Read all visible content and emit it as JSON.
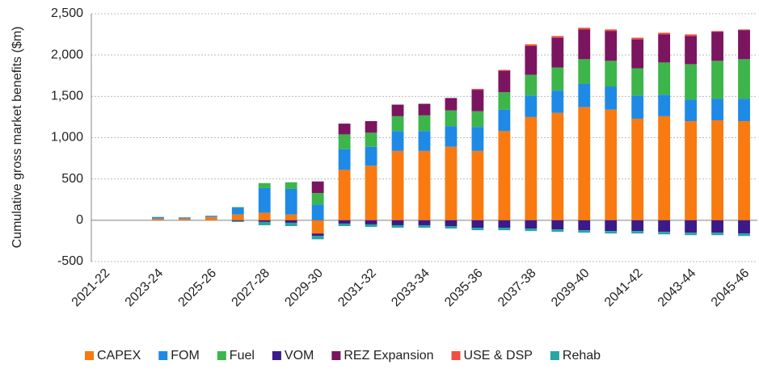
{
  "chart_data": {
    "type": "stacked_bar",
    "y_label": "Cumulative gross market benefits ($m)",
    "categories": [
      "2021-22",
      null,
      "2023-24",
      null,
      "2025-26",
      null,
      "2027-28",
      null,
      "2029-30",
      null,
      "2031-32",
      null,
      "2033-34",
      null,
      "2035-36",
      null,
      "2037-38",
      null,
      "2039-40",
      null,
      "2041-42",
      null,
      "2043-44",
      null,
      "2045-46"
    ],
    "series": [
      {
        "name": "CAPEX",
        "color": "#f97a10",
        "values": [
          0,
          0,
          20,
          20,
          40,
          70,
          90,
          70,
          -160,
          610,
          660,
          840,
          840,
          890,
          840,
          1080,
          1250,
          1300,
          1370,
          1340,
          1230,
          1260,
          1200,
          1210,
          1200
        ]
      },
      {
        "name": "FOM",
        "color": "#1e8ae6",
        "values": [
          0,
          0,
          20,
          15,
          15,
          80,
          300,
          310,
          190,
          250,
          230,
          240,
          240,
          250,
          290,
          260,
          260,
          270,
          280,
          280,
          280,
          260,
          260,
          260,
          270
        ]
      },
      {
        "name": "Fuel",
        "color": "#3cb54a",
        "values": [
          0,
          0,
          0,
          0,
          0,
          10,
          60,
          80,
          140,
          180,
          170,
          180,
          190,
          190,
          190,
          210,
          250,
          280,
          300,
          310,
          330,
          390,
          430,
          460,
          480
        ]
      },
      {
        "name": "VOM",
        "color": "#3b1a8a",
        "values": [
          0,
          0,
          0,
          0,
          0,
          -10,
          -20,
          -30,
          -30,
          -40,
          -50,
          -60,
          -60,
          -70,
          -90,
          -90,
          -100,
          -110,
          -120,
          -130,
          -130,
          -140,
          -150,
          -150,
          -160
        ]
      },
      {
        "name": "REZ Expansion",
        "color": "#7b1560",
        "values": [
          0,
          0,
          0,
          0,
          0,
          0,
          0,
          0,
          140,
          130,
          140,
          140,
          140,
          150,
          260,
          260,
          350,
          360,
          360,
          360,
          350,
          340,
          340,
          350,
          350
        ]
      },
      {
        "name": "USE & DSP",
        "color": "#f04e3e",
        "values": [
          0,
          0,
          0,
          0,
          0,
          0,
          0,
          0,
          0,
          0,
          0,
          0,
          0,
          0,
          10,
          10,
          20,
          20,
          20,
          20,
          20,
          20,
          20,
          10,
          10
        ]
      },
      {
        "name": "Rehab",
        "color": "#26a6a4",
        "values": [
          0,
          0,
          0,
          0,
          0,
          -10,
          -40,
          -40,
          -40,
          -30,
          -30,
          -30,
          -30,
          -30,
          -30,
          -30,
          -30,
          -30,
          -30,
          -30,
          -30,
          -30,
          -30,
          -30,
          -30
        ]
      }
    ],
    "ylim": [
      -500,
      2500
    ],
    "yticks": [
      {
        "value": -500,
        "label": "-500"
      },
      0,
      500,
      {
        "value": 1000,
        "label": "1,000"
      },
      {
        "value": 1500,
        "label": "1,500"
      },
      {
        "value": 2000,
        "label": "2,000"
      },
      {
        "value": 2500,
        "label": "2,500"
      }
    ],
    "grid": true
  }
}
